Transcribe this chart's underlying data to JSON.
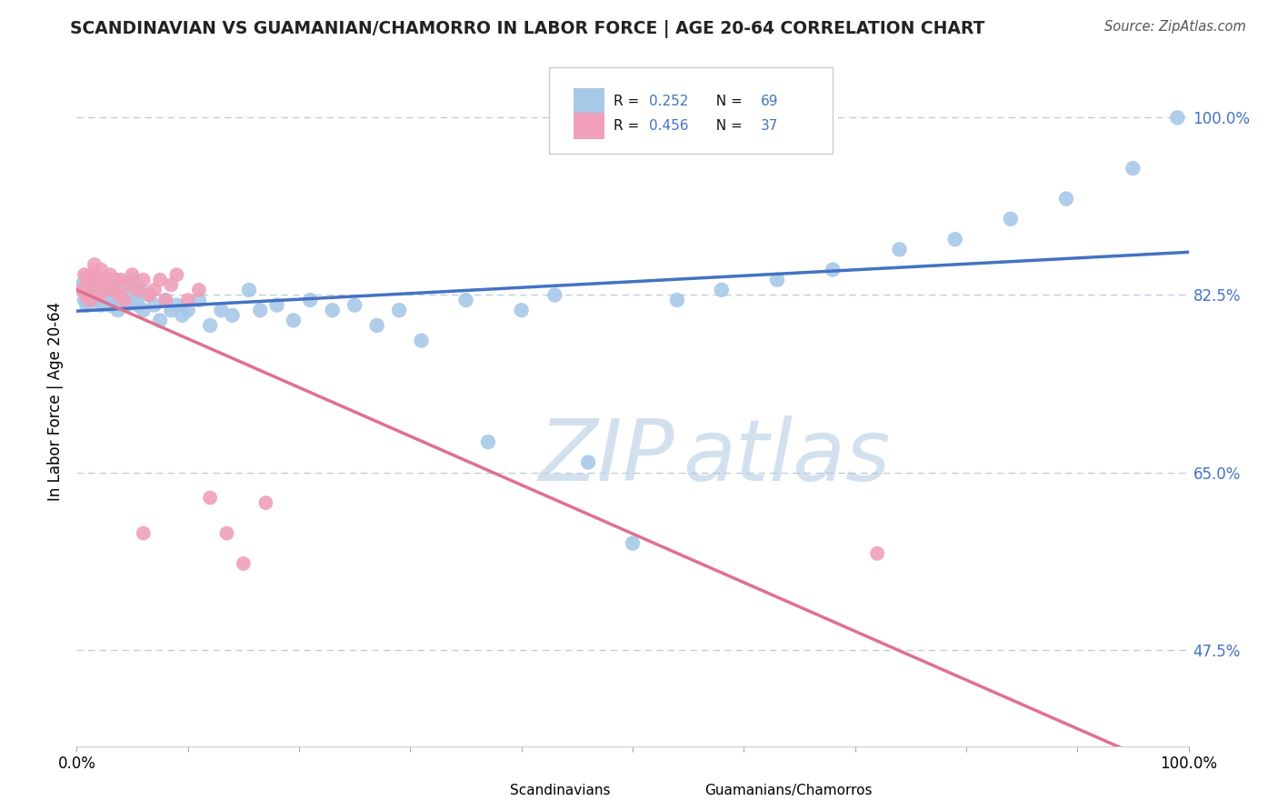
{
  "title": "SCANDINAVIAN VS GUAMANIAN/CHAMORRO IN LABOR FORCE | AGE 20-64 CORRELATION CHART",
  "source": "Source: ZipAtlas.com",
  "ylabel": "In Labor Force | Age 20-64",
  "blue_color": "#a8c8e8",
  "pink_color": "#f0a0b8",
  "trendline_blue": "#4472c4",
  "trendline_pink": "#e07090",
  "y_tick_positions": [
    0.475,
    0.65,
    0.825,
    1.0
  ],
  "y_tick_labels": [
    "47.5%",
    "65.0%",
    "82.5%",
    "100.0%"
  ],
  "xlim": [
    0.0,
    1.0
  ],
  "ylim": [
    0.38,
    1.06
  ],
  "scan_x": [
    0.005,
    0.007,
    0.008,
    0.009,
    0.01,
    0.012,
    0.013,
    0.015,
    0.016,
    0.017,
    0.018,
    0.02,
    0.022,
    0.023,
    0.025,
    0.027,
    0.028,
    0.03,
    0.032,
    0.033,
    0.035,
    0.037,
    0.04,
    0.042,
    0.045,
    0.048,
    0.05,
    0.053,
    0.055,
    0.058,
    0.06,
    0.065,
    0.07,
    0.075,
    0.08,
    0.085,
    0.09,
    0.095,
    0.1,
    0.11,
    0.12,
    0.13,
    0.14,
    0.155,
    0.165,
    0.18,
    0.195,
    0.21,
    0.23,
    0.25,
    0.27,
    0.29,
    0.31,
    0.35,
    0.37,
    0.4,
    0.43,
    0.46,
    0.5,
    0.54,
    0.58,
    0.63,
    0.68,
    0.74,
    0.79,
    0.84,
    0.89,
    0.95,
    0.99
  ],
  "scan_y": [
    0.835,
    0.82,
    0.84,
    0.815,
    0.83,
    0.825,
    0.835,
    0.845,
    0.825,
    0.82,
    0.835,
    0.84,
    0.815,
    0.83,
    0.825,
    0.82,
    0.84,
    0.815,
    0.83,
    0.82,
    0.84,
    0.81,
    0.82,
    0.835,
    0.815,
    0.825,
    0.84,
    0.82,
    0.815,
    0.83,
    0.81,
    0.825,
    0.815,
    0.8,
    0.82,
    0.81,
    0.815,
    0.805,
    0.81,
    0.82,
    0.795,
    0.81,
    0.805,
    0.83,
    0.81,
    0.815,
    0.8,
    0.82,
    0.81,
    0.815,
    0.795,
    0.81,
    0.78,
    0.82,
    0.68,
    0.81,
    0.825,
    0.66,
    0.58,
    0.82,
    0.83,
    0.84,
    0.85,
    0.87,
    0.88,
    0.9,
    0.92,
    0.95,
    1.0
  ],
  "cham_x": [
    0.005,
    0.007,
    0.008,
    0.01,
    0.012,
    0.013,
    0.015,
    0.016,
    0.018,
    0.02,
    0.022,
    0.025,
    0.027,
    0.03,
    0.033,
    0.035,
    0.038,
    0.04,
    0.043,
    0.047,
    0.05,
    0.055,
    0.06,
    0.065,
    0.07,
    0.075,
    0.08,
    0.085,
    0.09,
    0.1,
    0.11,
    0.12,
    0.135,
    0.15,
    0.17,
    0.06,
    0.72
  ],
  "cham_y": [
    0.83,
    0.845,
    0.825,
    0.84,
    0.82,
    0.845,
    0.835,
    0.855,
    0.84,
    0.825,
    0.85,
    0.84,
    0.83,
    0.845,
    0.83,
    0.84,
    0.825,
    0.84,
    0.82,
    0.835,
    0.845,
    0.83,
    0.84,
    0.825,
    0.83,
    0.84,
    0.82,
    0.835,
    0.845,
    0.82,
    0.83,
    0.625,
    0.59,
    0.56,
    0.62,
    0.59,
    0.57
  ],
  "watermark_zip_color": "#c8d8ea",
  "watermark_atlas_color": "#b8cce0"
}
